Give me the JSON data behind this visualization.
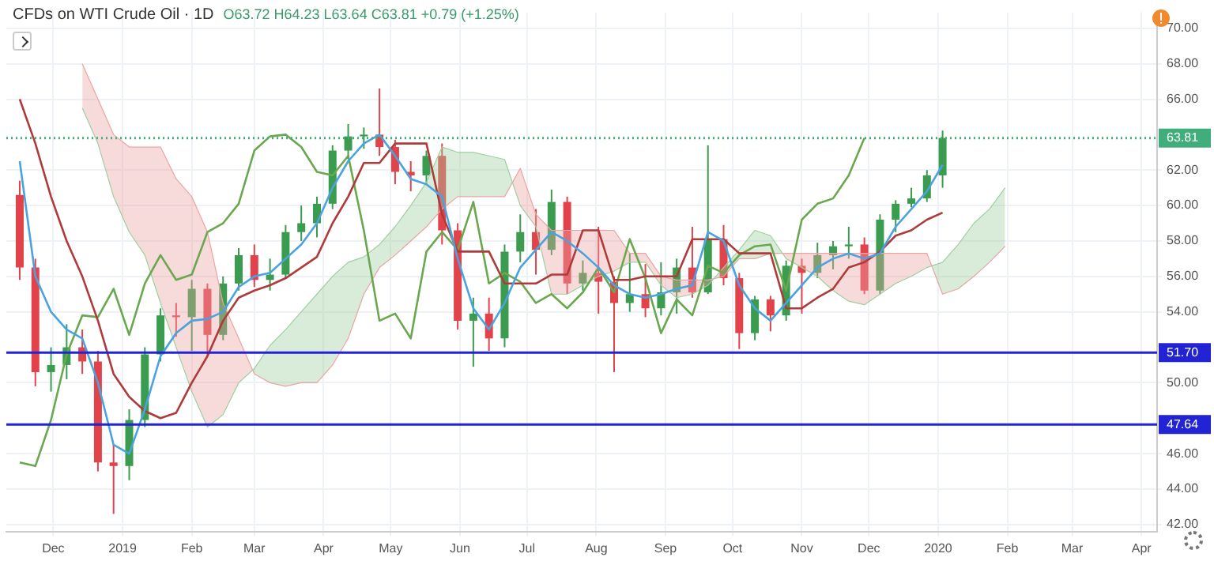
{
  "chart_data": {
    "type": "candlestick",
    "title": "CFDs on WTI Crude Oil · 1D",
    "subtitle": "O63.72 H64.23 L63.64 C63.81 +0.79 (+1.25%)",
    "x": [
      "2018-11-16",
      "2018-11-23",
      "2018-11-30",
      "2018-12-07",
      "2018-12-14",
      "2018-12-21",
      "2018-12-28",
      "2019-01-04",
      "2019-01-11",
      "2019-01-18",
      "2019-01-25",
      "2019-02-01",
      "2019-02-08",
      "2019-02-15",
      "2019-02-22",
      "2019-03-01",
      "2019-03-08",
      "2019-03-15",
      "2019-03-22",
      "2019-03-29",
      "2019-04-05",
      "2019-04-12",
      "2019-04-19",
      "2019-04-26",
      "2019-05-03",
      "2019-05-10",
      "2019-05-17",
      "2019-05-24",
      "2019-05-31",
      "2019-06-07",
      "2019-06-14",
      "2019-06-21",
      "2019-06-28",
      "2019-07-05",
      "2019-07-12",
      "2019-07-19",
      "2019-07-26",
      "2019-08-02",
      "2019-08-09",
      "2019-08-16",
      "2019-08-23",
      "2019-08-30",
      "2019-09-06",
      "2019-09-13",
      "2019-09-20",
      "2019-09-27",
      "2019-10-04",
      "2019-10-11",
      "2019-10-18",
      "2019-10-25",
      "2019-11-01",
      "2019-11-08",
      "2019-11-15",
      "2019-11-22",
      "2019-11-29",
      "2019-12-06",
      "2019-12-13",
      "2019-12-20",
      "2019-12-27",
      "2020-01-03"
    ],
    "ohlc": [
      [
        60.6,
        61.4,
        55.8,
        56.5
      ],
      [
        56.5,
        57.0,
        49.8,
        50.6
      ],
      [
        50.6,
        52.0,
        49.5,
        51.0
      ],
      [
        51.0,
        53.3,
        50.2,
        52.0
      ],
      [
        52.0,
        53.0,
        50.5,
        51.2
      ],
      [
        51.2,
        51.8,
        45.0,
        45.5
      ],
      [
        45.5,
        46.5,
        42.6,
        45.3
      ],
      [
        45.3,
        48.5,
        44.5,
        47.9
      ],
      [
        47.9,
        52.0,
        47.5,
        51.6
      ],
      [
        51.6,
        54.2,
        51.2,
        53.8
      ],
      [
        53.8,
        54.5,
        52.6,
        53.7
      ],
      [
        53.7,
        55.8,
        51.8,
        55.3
      ],
      [
        55.3,
        55.6,
        51.5,
        52.7
      ],
      [
        52.7,
        56.0,
        52.4,
        55.6
      ],
      [
        55.6,
        57.6,
        55.2,
        57.2
      ],
      [
        57.2,
        57.8,
        55.4,
        55.8
      ],
      [
        55.8,
        57.0,
        55.2,
        56.1
      ],
      [
        56.1,
        58.9,
        55.9,
        58.5
      ],
      [
        58.5,
        60.0,
        58.0,
        59.0
      ],
      [
        59.0,
        60.5,
        58.2,
        60.1
      ],
      [
        60.1,
        63.4,
        59.8,
        63.1
      ],
      [
        63.1,
        64.6,
        62.8,
        63.9
      ],
      [
        63.9,
        64.4,
        63.2,
        64.0
      ],
      [
        64.0,
        66.6,
        62.8,
        63.3
      ],
      [
        63.3,
        63.7,
        61.2,
        61.9
      ],
      [
        61.9,
        62.5,
        60.8,
        61.7
      ],
      [
        61.7,
        63.1,
        61.2,
        62.8
      ],
      [
        62.8,
        63.5,
        57.8,
        58.6
      ],
      [
        58.6,
        59.0,
        53.0,
        53.5
      ],
      [
        53.5,
        54.8,
        50.9,
        53.9
      ],
      [
        53.9,
        54.8,
        51.8,
        52.5
      ],
      [
        52.5,
        57.8,
        52.0,
        57.4
      ],
      [
        57.4,
        59.5,
        56.8,
        58.5
      ],
      [
        58.5,
        59.8,
        56.1,
        57.5
      ],
      [
        57.5,
        60.9,
        57.2,
        60.2
      ],
      [
        60.2,
        60.5,
        55.0,
        55.6
      ],
      [
        55.6,
        56.9,
        55.2,
        56.2
      ],
      [
        56.2,
        58.8,
        53.9,
        55.7
      ],
      [
        55.7,
        56.0,
        50.6,
        54.5
      ],
      [
        54.5,
        57.3,
        54.0,
        55.0
      ],
      [
        55.0,
        56.7,
        53.7,
        54.2
      ],
      [
        54.2,
        56.8,
        53.8,
        55.1
      ],
      [
        55.1,
        57.0,
        53.9,
        56.5
      ],
      [
        56.5,
        58.8,
        54.8,
        55.1
      ],
      [
        55.1,
        63.4,
        55.0,
        58.1
      ],
      [
        58.1,
        58.9,
        55.5,
        55.9
      ],
      [
        55.9,
        56.2,
        51.9,
        52.8
      ],
      [
        52.8,
        54.9,
        52.4,
        54.7
      ],
      [
        54.7,
        54.9,
        52.9,
        53.8
      ],
      [
        53.8,
        56.9,
        53.5,
        56.6
      ],
      [
        56.6,
        57.0,
        53.9,
        56.2
      ],
      [
        56.2,
        57.9,
        55.9,
        57.2
      ],
      [
        57.2,
        58.0,
        56.4,
        57.7
      ],
      [
        57.7,
        58.8,
        57.0,
        57.8
      ],
      [
        57.8,
        58.2,
        55.0,
        55.2
      ],
      [
        55.2,
        59.5,
        55.0,
        59.2
      ],
      [
        59.2,
        60.3,
        58.5,
        60.1
      ],
      [
        60.1,
        61.0,
        59.9,
        60.4
      ],
      [
        60.4,
        62.0,
        60.2,
        61.7
      ],
      [
        61.7,
        64.23,
        61.0,
        63.81
      ]
    ],
    "colors": [
      "#e2434b",
      "#e2434b",
      "#3b9c4f",
      "#3b9c4f",
      "#e2434b",
      "#e2434b",
      "#e2434b",
      "#3b9c4f",
      "#3b9c4f",
      "#3b9c4f",
      "#e2434b",
      "#3b9c4f",
      "#e2434b",
      "#3b9c4f",
      "#3b9c4f",
      "#e2434b",
      "#3b9c4f",
      "#3b9c4f",
      "#3b9c4f",
      "#3b9c4f",
      "#3b9c4f",
      "#3b9c4f",
      "#3b9c4f",
      "#e2434b",
      "#e2434b",
      "#e2434b",
      "#3b9c4f",
      "#e2434b",
      "#e2434b",
      "#3b9c4f",
      "#e2434b",
      "#3b9c4f",
      "#3b9c4f",
      "#e2434b",
      "#3b9c4f",
      "#e2434b",
      "#3b9c4f",
      "#e2434b",
      "#e2434b",
      "#3b9c4f",
      "#e2434b",
      "#3b9c4f",
      "#3b9c4f",
      "#e2434b",
      "#3b9c4f",
      "#e2434b",
      "#e2434b",
      "#3b9c4f",
      "#e2434b",
      "#3b9c4f",
      "#e2434b",
      "#3b9c4f",
      "#3b9c4f",
      "#3b9c4f",
      "#e2434b",
      "#3b9c4f",
      "#3b9c4f",
      "#3b9c4f",
      "#3b9c4f",
      "#3b9c4f"
    ],
    "series": [
      {
        "type": "line",
        "color": "#4aa3df",
        "values": [
          62.5,
          56.0,
          54.0,
          53.0,
          52.5,
          50.0,
          46.5,
          46.0,
          48.5,
          51.5,
          52.8,
          53.5,
          53.6,
          54.0,
          55.4,
          56.0,
          56.2,
          57.0,
          57.8,
          59.0,
          61.0,
          62.5,
          63.5,
          64.0,
          62.8,
          61.5,
          61.2,
          60.5,
          57.0,
          54.2,
          53.0,
          54.5,
          56.5,
          57.5,
          58.5,
          58.0,
          57.3,
          56.5,
          55.5,
          55.0,
          54.8,
          55.0,
          55.3,
          55.5,
          58.5,
          58.0,
          55.5,
          54.2,
          53.5,
          54.5,
          55.5,
          56.5,
          57.0,
          57.3,
          57.0,
          57.3,
          58.8,
          59.8,
          60.8,
          62.3
        ]
      },
      {
        "type": "line",
        "color": "#b03a3a",
        "values": [
          66.0,
          63.5,
          60.5,
          58.0,
          56.0,
          53.5,
          50.5,
          49.2,
          48.4,
          48.0,
          48.3,
          50.0,
          51.5,
          53.5,
          54.8,
          55.2,
          55.5,
          55.9,
          56.5,
          57.1,
          59.0,
          60.5,
          62.4,
          62.4,
          63.5,
          63.5,
          63.5,
          59.5,
          57.4,
          57.4,
          57.4,
          55.6,
          55.6,
          55.6,
          56.1,
          56.1,
          58.6,
          58.6,
          55.8,
          55.8,
          56.0,
          56.0,
          56.0,
          58.1,
          58.1,
          58.1,
          57.3,
          57.3,
          57.3,
          54.2,
          54.2,
          54.8,
          55.3,
          56.5,
          56.8,
          57.4,
          58.3,
          58.6,
          59.2,
          59.6
        ]
      },
      {
        "type": "line",
        "color": "#6aa84f",
        "x": [
          "2018-11-16",
          "2018-11-23",
          "2018-11-30",
          "2018-12-07",
          "2018-12-14",
          "2018-12-21",
          "2018-12-28",
          "2019-01-04",
          "2019-01-11",
          "2019-01-18",
          "2019-01-25",
          "2019-02-01",
          "2019-02-08",
          "2019-02-15",
          "2019-02-22",
          "2019-03-01",
          "2019-03-08",
          "2019-03-15",
          "2019-03-22",
          "2019-03-29",
          "2019-04-05",
          "2019-04-12",
          "2019-04-19",
          "2019-04-26",
          "2019-05-03",
          "2019-05-10",
          "2019-05-17",
          "2019-05-24",
          "2019-05-31",
          "2019-06-07",
          "2019-06-14",
          "2019-06-21",
          "2019-06-28",
          "2019-07-05",
          "2019-07-12",
          "2019-07-19",
          "2019-07-26",
          "2019-08-02",
          "2019-08-09",
          "2019-08-16",
          "2019-08-23",
          "2019-08-30",
          "2019-09-06",
          "2019-09-13",
          "2019-09-20",
          "2019-09-27",
          "2019-10-04",
          "2019-10-11",
          "2019-10-18",
          "2019-10-25",
          "2019-11-01",
          "2019-11-08",
          "2019-11-15",
          "2019-11-22",
          "2019-11-29"
        ],
        "values": [
          45.5,
          45.3,
          47.9,
          51.6,
          53.8,
          53.7,
          55.3,
          52.7,
          55.6,
          57.2,
          55.8,
          56.1,
          58.5,
          59.0,
          60.1,
          63.1,
          63.9,
          64.0,
          63.3,
          61.9,
          61.7,
          62.8,
          58.6,
          53.5,
          53.9,
          52.5,
          57.4,
          58.5,
          57.5,
          60.2,
          55.6,
          56.2,
          55.7,
          54.5,
          55.0,
          54.2,
          55.1,
          56.5,
          55.1,
          58.1,
          55.9,
          52.8,
          54.7,
          53.8,
          56.6,
          56.2,
          57.2,
          57.7,
          57.8,
          55.2,
          59.2,
          60.1,
          60.4,
          61.7,
          63.8
        ]
      },
      {
        "type": "line",
        "color": "#9fcf9f",
        "x": [
          "2018-12-14",
          "2018-12-21",
          "2018-12-28",
          "2019-01-04",
          "2019-01-11",
          "2019-01-18",
          "2019-01-25",
          "2019-02-01",
          "2019-02-08",
          "2019-02-15",
          "2019-02-22",
          "2019-03-01",
          "2019-03-08",
          "2019-03-15",
          "2019-03-22",
          "2019-03-29",
          "2019-04-05",
          "2019-04-12",
          "2019-04-19",
          "2019-04-26",
          "2019-05-03",
          "2019-05-10",
          "2019-05-17",
          "2019-05-24",
          "2019-05-31",
          "2019-06-07",
          "2019-06-14",
          "2019-06-21",
          "2019-06-28",
          "2019-07-05",
          "2019-07-12",
          "2019-07-19",
          "2019-07-26",
          "2019-08-02",
          "2019-08-09",
          "2019-08-16",
          "2019-08-23",
          "2019-08-30",
          "2019-09-06",
          "2019-09-13",
          "2019-09-20",
          "2019-09-27",
          "2019-10-04",
          "2019-10-11",
          "2019-10-18",
          "2019-10-25",
          "2019-11-01",
          "2019-11-08",
          "2019-11-15",
          "2019-11-22",
          "2019-11-29",
          "2019-12-06",
          "2019-12-13",
          "2019-12-20",
          "2019-12-27",
          "2020-01-03",
          "2020-01-10",
          "2020-01-17",
          "2020-01-24",
          "2020-01-31"
        ],
        "values": [
          65.5,
          63.5,
          60.5,
          58.5,
          57.2,
          54.5,
          52.0,
          49.5,
          47.5,
          48.2,
          50.0,
          50.8,
          52.1,
          53.0,
          54.0,
          55.0,
          56.0,
          56.8,
          57.1,
          57.8,
          58.8,
          60.0,
          61.3,
          63.3,
          63.0,
          63.0,
          62.8,
          62.6,
          60.0,
          58.8,
          55.0,
          55.0,
          55.5,
          56.0,
          56.3,
          56.8,
          56.8,
          55.5,
          54.8,
          55.0,
          55.5,
          56.5,
          57.5,
          58.6,
          58.3,
          57.0,
          56.5,
          56.0,
          55.2,
          54.6,
          54.4,
          55.0,
          55.6,
          56.0,
          56.5,
          56.8,
          57.8,
          59.0,
          59.8,
          61.0
        ]
      },
      {
        "type": "line",
        "color": "#eba3a3",
        "lower": [
          65.5,
          63.5,
          60.5,
          58.5,
          57.2,
          54.5,
          52.0,
          49.5,
          47.5,
          48.2,
          50.0,
          50.8,
          52.1,
          53.0,
          54.0,
          55.0,
          56.0,
          56.8,
          57.1,
          57.8,
          58.8,
          60.0,
          61.3,
          63.3,
          63.0,
          63.0,
          62.8,
          62.6,
          60.0,
          58.8,
          55.0,
          55.0,
          55.5,
          56.0,
          56.3,
          56.8,
          56.8,
          55.5,
          54.8,
          55.0,
          55.5,
          56.5,
          57.5,
          58.6,
          58.3,
          57.0,
          56.5,
          56.0,
          55.2,
          54.6,
          54.4,
          55.0,
          55.6,
          56.0,
          56.5,
          56.8,
          57.8,
          59.0,
          59.8,
          61.0
        ],
        "upper": [
          68.0,
          66.0,
          64.0,
          63.3,
          63.3,
          63.3,
          61.5,
          60.5,
          58.5,
          54.5,
          52.5,
          50.5,
          50.0,
          49.8,
          50.0,
          50.0,
          51.0,
          52.5,
          55.0,
          56.5,
          57.2,
          58.0,
          58.8,
          59.8,
          60.5,
          60.5,
          60.5,
          60.5,
          62.1,
          59.5,
          58.6,
          58.6,
          58.6,
          58.6,
          58.6,
          57.3,
          57.3,
          56.0,
          55.8,
          55.8,
          55.8,
          56.0,
          57.0,
          57.0,
          57.3,
          57.3,
          57.3,
          57.3,
          57.3,
          57.3,
          57.3,
          57.3,
          57.3,
          57.3,
          57.3,
          55.0,
          55.3,
          56.0,
          56.8,
          57.7
        ],
        "x": [
          "2018-12-14",
          "2018-12-21",
          "2018-12-28",
          "2019-01-04",
          "2019-01-11",
          "2019-01-18",
          "2019-01-25",
          "2019-02-01",
          "2019-02-08",
          "2019-02-15",
          "2019-02-22",
          "2019-03-01",
          "2019-03-08",
          "2019-03-15",
          "2019-03-22",
          "2019-03-29",
          "2019-04-05",
          "2019-04-12",
          "2019-04-19",
          "2019-04-26",
          "2019-05-03",
          "2019-05-10",
          "2019-05-17",
          "2019-05-24",
          "2019-05-31",
          "2019-06-07",
          "2019-06-14",
          "2019-06-21",
          "2019-06-28",
          "2019-07-05",
          "2019-07-12",
          "2019-07-19",
          "2019-07-26",
          "2019-08-02",
          "2019-08-09",
          "2019-08-16",
          "2019-08-23",
          "2019-08-30",
          "2019-09-06",
          "2019-09-13",
          "2019-09-20",
          "2019-09-27",
          "2019-10-04",
          "2019-10-11",
          "2019-10-18",
          "2019-10-25",
          "2019-11-01",
          "2019-11-08",
          "2019-11-15",
          "2019-11-22",
          "2019-11-29",
          "2019-12-06",
          "2019-12-13",
          "2019-12-20",
          "2019-12-27",
          "2020-01-03",
          "2020-01-10",
          "2020-01-17",
          "2020-01-24",
          "2020-01-31"
        ],
        "values": [
          68.0,
          66.0,
          64.0,
          63.3,
          63.3,
          63.3,
          61.5,
          60.5,
          58.5,
          54.5,
          52.5,
          50.5,
          50.0,
          49.8,
          50.0,
          50.0,
          51.0,
          52.5,
          55.0,
          56.5,
          57.2,
          58.0,
          58.8,
          59.8,
          60.5,
          60.5,
          60.5,
          60.5,
          62.1,
          59.5,
          58.6,
          58.6,
          58.6,
          58.6,
          58.6,
          57.3,
          57.3,
          56.0,
          55.8,
          55.8,
          55.8,
          56.0,
          57.0,
          57.0,
          57.3,
          57.3,
          57.3,
          57.3,
          57.3,
          57.3,
          57.3,
          57.3,
          57.3,
          57.3,
          57.3,
          55.0,
          55.3,
          56.0,
          56.8,
          57.7
        ]
      }
    ],
    "xlim": [
      "2018-11-10",
      "2020-04-08"
    ],
    "xticks": [
      {
        "value": "2018-12-01",
        "label": "Dec"
      },
      {
        "value": "2019-01-01",
        "label": "2019"
      },
      {
        "value": "2019-02-01",
        "label": "Feb"
      },
      {
        "value": "2019-03-01",
        "label": "Mar"
      },
      {
        "value": "2019-04-01",
        "label": "Apr"
      },
      {
        "value": "2019-05-01",
        "label": "May"
      },
      {
        "value": "2019-06-01",
        "label": "Jun"
      },
      {
        "value": "2019-07-01",
        "label": "Jul"
      },
      {
        "value": "2019-08-01",
        "label": "Aug"
      },
      {
        "value": "2019-09-01",
        "label": "Sep"
      },
      {
        "value": "2019-10-01",
        "label": "Oct"
      },
      {
        "value": "2019-11-01",
        "label": "Nov"
      },
      {
        "value": "2019-12-01",
        "label": "Dec"
      },
      {
        "value": "2020-01-01",
        "label": "2020"
      },
      {
        "value": "2020-02-01",
        "label": "Feb"
      },
      {
        "value": "2020-03-01",
        "label": "Mar"
      },
      {
        "value": "2020-04-01",
        "label": "Apr"
      }
    ],
    "ylim": [
      41.6,
      70.9
    ],
    "yticks": [
      {
        "value": 42,
        "label": "42.00"
      },
      {
        "value": 44,
        "label": "44.00"
      },
      {
        "value": 46,
        "label": "46.00"
      },
      {
        "value": 50,
        "label": "50.00"
      },
      {
        "value": 54,
        "label": "54.00"
      },
      {
        "value": 56,
        "label": "56.00"
      },
      {
        "value": 58,
        "label": "58.00"
      },
      {
        "value": 60,
        "label": "60.00"
      },
      {
        "value": 62,
        "label": "62.00"
      },
      {
        "value": 66,
        "label": "66.00"
      },
      {
        "value": 68,
        "label": "68.00"
      },
      {
        "value": 70,
        "label": "70.00"
      }
    ],
    "ref_lines": [
      {
        "axis": "y",
        "value": 63.81,
        "label": "63.81",
        "color": "#3fae7a",
        "line_style": "dotted"
      },
      {
        "axis": "y",
        "value": 51.7,
        "label": "51.70",
        "color": "#2323d6"
      },
      {
        "axis": "y",
        "value": 47.64,
        "label": "47.64",
        "color": "#2323d6"
      }
    ],
    "grid": true
  }
}
